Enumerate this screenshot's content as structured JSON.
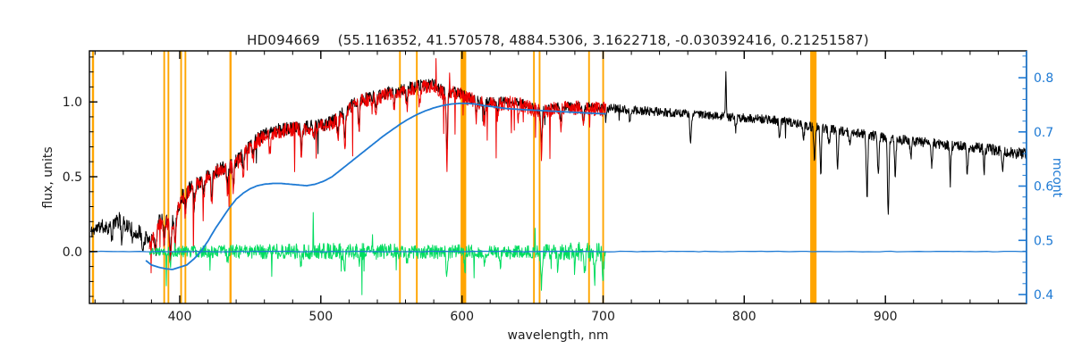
{
  "chart_data": {
    "type": "line",
    "title": "HD094669    (55.116352, 41.570578, 4884.5306, 3.1622718, -0.030392416, 0.21251587)",
    "xlabel": "wavelength, nm",
    "ylabel_left": "flux, units",
    "ylabel_right": "mcont",
    "xlim": [
      336,
      1000
    ],
    "ylim_left": [
      -0.347,
      1.341
    ],
    "ylim_right": [
      0.3835,
      0.8496
    ],
    "grid": false,
    "legend": "none",
    "colors": {
      "observed": "#000000",
      "fit": "#ee0000",
      "mcont": "#1e7ad4",
      "residual": "#00dc5f",
      "mask": "#ffa500",
      "axis": "#000000",
      "text": "#1c1c1c"
    },
    "ticks": {
      "x": {
        "major": [
          {
            "v": 400,
            "label": "400"
          },
          {
            "v": 500,
            "label": "500"
          },
          {
            "v": 600,
            "label": "600"
          },
          {
            "v": 700,
            "label": "700"
          },
          {
            "v": 800,
            "label": "800"
          },
          {
            "v": 900,
            "label": "900"
          }
        ],
        "minor_step": 20
      },
      "y_left": {
        "major": [
          {
            "v": 0,
            "label": "0.0"
          },
          {
            "v": 0.5,
            "label": "0.5"
          },
          {
            "v": 1,
            "label": "1.0"
          }
        ],
        "minor_step": 0.1
      },
      "y_right": {
        "major": [
          {
            "v": 0.4,
            "label": "0.4"
          },
          {
            "v": 0.5,
            "label": "0.5"
          },
          {
            "v": 0.6,
            "label": "0.6"
          },
          {
            "v": 0.7,
            "label": "0.7"
          },
          {
            "v": 0.8,
            "label": "0.8"
          }
        ],
        "minor_step": 0.02
      }
    },
    "mask_lines": [
      {
        "wl": 338.5,
        "w": 1.5
      },
      {
        "wl": 389,
        "w": 1.2
      },
      {
        "wl": 392,
        "w": 1.2
      },
      {
        "wl": 401,
        "w": 1.2
      },
      {
        "wl": 404,
        "w": 1.2
      },
      {
        "wl": 436,
        "w": 1.5
      },
      {
        "wl": 556,
        "w": 1.2
      },
      {
        "wl": 568,
        "w": 1.2
      },
      {
        "wl": 601,
        "w": 4.0
      },
      {
        "wl": 651,
        "w": 1.2
      },
      {
        "wl": 655,
        "w": 1.2
      },
      {
        "wl": 690,
        "w": 1.2
      },
      {
        "wl": 700,
        "w": 1.2
      },
      {
        "wl": 849,
        "w": 4.5
      }
    ],
    "series": [
      {
        "name": "observed_spectrum",
        "color": "#000000",
        "seed": 11,
        "step": 0.28,
        "width": 1,
        "range": [
          337,
          1000
        ],
        "x": [
          337,
          344,
          350,
          356,
          362,
          368,
          374,
          378,
          382,
          386,
          390,
          394,
          398,
          402,
          406,
          410,
          415,
          420,
          426,
          432,
          438,
          444,
          450,
          458,
          466,
          474,
          482,
          490,
          498,
          506,
          514,
          522,
          530,
          540,
          550,
          560,
          570,
          580,
          588,
          596,
          605,
          615,
          625,
          640,
          656,
          670,
          685,
          700,
          715,
          730,
          745,
          760,
          775,
          790,
          805,
          820,
          835,
          850,
          865,
          880,
          895,
          910,
          925,
          940,
          955,
          970,
          985,
          1000
        ],
        "y": [
          0.13,
          0.17,
          0.16,
          0.22,
          0.18,
          0.14,
          0.11,
          0.07,
          0.11,
          0.23,
          0.21,
          0.18,
          0.28,
          0.37,
          0.41,
          0.44,
          0.48,
          0.51,
          0.54,
          0.56,
          0.58,
          0.64,
          0.71,
          0.77,
          0.8,
          0.82,
          0.83,
          0.83,
          0.84,
          0.86,
          0.91,
          0.98,
          1.02,
          1.04,
          1.07,
          1.09,
          1.11,
          1.12,
          1.06,
          1.07,
          1.03,
          1.0,
          1.0,
          1.0,
          0.94,
          0.97,
          0.97,
          0.96,
          0.95,
          0.94,
          0.93,
          0.92,
          0.91,
          0.9,
          0.89,
          0.88,
          0.86,
          0.83,
          0.81,
          0.79,
          0.77,
          0.75,
          0.73,
          0.72,
          0.7,
          0.69,
          0.67,
          0.65
        ],
        "noise_x": [
          337,
          360,
          380,
          400,
          430,
          460,
          500,
          540,
          580,
          620,
          660,
          700,
          760,
          820,
          880,
          940,
          1000
        ],
        "noise": [
          0.045,
          0.05,
          0.055,
          0.055,
          0.05,
          0.045,
          0.045,
          0.04,
          0.038,
          0.033,
          0.03,
          0.03,
          0.028,
          0.03,
          0.032,
          0.034,
          0.04
        ],
        "spike_p": 0.004,
        "spike_depth": 0.15,
        "up_frac": 0,
        "lines": [
          [
            352,
            0.1
          ],
          [
            359,
            0.12
          ],
          [
            367,
            0.1
          ],
          [
            374,
            0.12
          ],
          [
            383,
            0.14
          ],
          [
            389,
            0.12
          ],
          [
            393.4,
            0.2
          ],
          [
            396.8,
            0.18
          ],
          [
            404,
            0.1
          ],
          [
            410.2,
            0.13
          ],
          [
            417,
            0.1
          ],
          [
            422.7,
            0.15
          ],
          [
            434,
            0.15
          ],
          [
            438,
            0.12
          ],
          [
            445,
            0.1
          ],
          [
            452,
            0.08
          ],
          [
            486.1,
            0.13
          ],
          [
            495,
            0.08
          ],
          [
            512,
            0.1
          ],
          [
            517,
            0.2
          ],
          [
            527,
            0.17
          ],
          [
            539,
            0.1
          ],
          [
            552,
            0.1
          ],
          [
            561,
            0.11
          ],
          [
            589.3,
            0.4
          ],
          [
            610,
            0.09
          ],
          [
            616,
            0.09
          ],
          [
            625,
            0.08
          ],
          [
            656.3,
            0.2
          ],
          [
            670,
            0.08
          ],
          [
            686,
            0.12
          ],
          [
            702,
            0.08
          ],
          [
            719,
            0.09
          ],
          [
            762,
            0.2
          ],
          [
            794,
            0.08
          ],
          [
            825,
            0.11
          ],
          [
            842,
            0.1
          ],
          [
            849.8,
            0.22
          ],
          [
            854.2,
            0.3
          ],
          [
            860,
            0.12
          ],
          [
            866.2,
            0.25
          ],
          [
            875,
            0.1
          ],
          [
            887,
            0.42
          ],
          [
            895,
            0.28
          ],
          [
            902,
            0.5
          ],
          [
            907,
            0.24
          ],
          [
            918,
            0.12
          ],
          [
            933,
            0.15
          ],
          [
            946,
            0.18
          ],
          [
            958,
            0.2
          ],
          [
            970,
            0.15
          ],
          [
            983,
            0.12
          ]
        ],
        "emis": [
          [
            787,
            0.28
          ]
        ]
      },
      {
        "name": "fitted_spectrum",
        "color": "#ee0000",
        "seed": 23,
        "step": 0.3,
        "width": 1,
        "range": [
          378.5,
          702
        ],
        "x": [
          378,
          382,
          386,
          390,
          394,
          398,
          402,
          406,
          410,
          415,
          420,
          426,
          432,
          438,
          444,
          450,
          458,
          466,
          474,
          482,
          490,
          498,
          506,
          514,
          522,
          530,
          540,
          550,
          560,
          570,
          580,
          588,
          596,
          605,
          615,
          625,
          640,
          656,
          670,
          685,
          702
        ],
        "y": [
          0.05,
          0.09,
          0.2,
          0.19,
          0.17,
          0.27,
          0.36,
          0.4,
          0.43,
          0.47,
          0.5,
          0.53,
          0.55,
          0.57,
          0.63,
          0.7,
          0.76,
          0.79,
          0.81,
          0.82,
          0.82,
          0.83,
          0.85,
          0.9,
          0.97,
          1.01,
          1.03,
          1.06,
          1.08,
          1.1,
          1.11,
          1.05,
          1.06,
          1.02,
          0.99,
          0.99,
          0.99,
          0.93,
          0.96,
          0.96,
          0.95
        ],
        "noise": 0.048,
        "spike_p": 0.02,
        "spike_depth": 0.34,
        "up_frac": 0.1,
        "lines": [
          [
            383,
            0.16
          ],
          [
            389,
            0.14
          ],
          [
            393.4,
            0.26
          ],
          [
            396.8,
            0.22
          ],
          [
            404,
            0.12
          ],
          [
            410.2,
            0.16
          ],
          [
            417,
            0.12
          ],
          [
            422.7,
            0.18
          ],
          [
            434,
            0.18
          ],
          [
            438,
            0.15
          ],
          [
            445,
            0.12
          ],
          [
            452,
            0.1
          ],
          [
            464,
            0.1
          ],
          [
            486.1,
            0.17
          ],
          [
            495,
            0.1
          ],
          [
            512,
            0.14
          ],
          [
            517,
            0.26
          ],
          [
            527,
            0.2
          ],
          [
            539,
            0.13
          ],
          [
            552,
            0.13
          ],
          [
            561,
            0.13
          ],
          [
            570,
            0.12
          ],
          [
            589.3,
            0.48
          ],
          [
            610,
            0.11
          ],
          [
            616,
            0.11
          ],
          [
            625,
            0.1
          ],
          [
            640,
            0.1
          ],
          [
            656.3,
            0.28
          ],
          [
            670,
            0.12
          ],
          [
            686,
            0.14
          ]
        ]
      },
      {
        "name": "residual",
        "color": "#00dc5f",
        "seed": 37,
        "step": 0.3,
        "width": 1,
        "range": [
          378.5,
          702
        ],
        "flat": 0.0,
        "noise_x": [
          378,
          395,
          415,
          440,
          470,
          500,
          530,
          560,
          590,
          620,
          645,
          665,
          685,
          702
        ],
        "noise": [
          0.02,
          0.035,
          0.04,
          0.045,
          0.05,
          0.055,
          0.055,
          0.05,
          0.048,
          0.042,
          0.04,
          0.055,
          0.065,
          0.07
        ],
        "spike_p": 0.012,
        "spike_depth": 0.24,
        "up_frac": 0.35,
        "lines": [
          [
            393.4,
            0.08
          ],
          [
            434,
            0.07
          ],
          [
            486,
            0.07
          ],
          [
            517,
            0.1
          ],
          [
            527,
            0.08
          ],
          [
            561,
            0.08
          ],
          [
            589.3,
            0.18
          ],
          [
            602,
            0.12
          ],
          [
            616,
            0.08
          ],
          [
            627,
            0.1
          ],
          [
            656.3,
            0.24
          ],
          [
            668,
            0.14
          ],
          [
            680,
            0.12
          ],
          [
            687,
            0.16
          ],
          [
            694,
            0.18
          ],
          [
            700,
            0.15
          ]
        ]
      },
      {
        "name": "zero_line",
        "color": "#1e7ad4",
        "seed": 7,
        "step": 4,
        "width": 1.3,
        "range": [
          336,
          1000
        ],
        "flat": 0.0,
        "noise": 0.002
      },
      {
        "name": "mcont_curve",
        "color": "#1e7ad4",
        "seed": 5,
        "step": 1,
        "width": 1.8,
        "range": [
          376,
          702
        ],
        "x": [
          376,
          380,
          385,
          390,
          395,
          400,
          405,
          410,
          415,
          420,
          425,
          430,
          435,
          440,
          445,
          450,
          455,
          460,
          466,
          472,
          478,
          484,
          490,
          496,
          502,
          508,
          514,
          520,
          526,
          532,
          538,
          544,
          550,
          556,
          562,
          568,
          574,
          580,
          586,
          592,
          598,
          604,
          610,
          616,
          624,
          632,
          640,
          650,
          660,
          670,
          680,
          690,
          702
        ],
        "y": [
          -0.06,
          -0.09,
          -0.105,
          -0.115,
          -0.12,
          -0.105,
          -0.09,
          -0.05,
          0.0,
          0.07,
          0.15,
          0.22,
          0.29,
          0.35,
          0.39,
          0.42,
          0.44,
          0.45,
          0.455,
          0.455,
          0.45,
          0.445,
          0.44,
          0.45,
          0.47,
          0.5,
          0.545,
          0.59,
          0.635,
          0.68,
          0.725,
          0.77,
          0.81,
          0.85,
          0.885,
          0.915,
          0.94,
          0.96,
          0.975,
          0.985,
          0.99,
          0.99,
          0.985,
          0.975,
          0.965,
          0.955,
          0.95,
          0.945,
          0.94,
          0.935,
          0.93,
          0.925,
          0.92
        ],
        "noise": 0.0
      }
    ]
  }
}
